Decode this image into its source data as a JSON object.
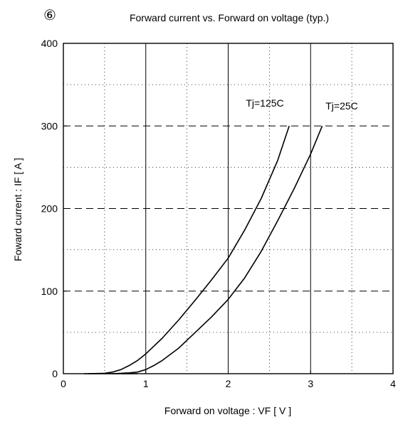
{
  "figure_mark": "⑥",
  "chart_data": {
    "type": "line",
    "title": "Forward current  vs.  Forward on voltage (typ.)",
    "xlabel": "Forward on voltage :  VF  [ V ]",
    "ylabel": "Foward current :  IF [ A ]",
    "xlim": [
      0,
      4
    ],
    "ylim": [
      0,
      400
    ],
    "xticks": [
      0,
      1,
      2,
      3,
      4
    ],
    "yticks": [
      0,
      100,
      200,
      300,
      400
    ],
    "xtick_labels": [
      "0",
      "1",
      "2",
      "3",
      "4"
    ],
    "ytick_labels": [
      "0",
      "100",
      "200",
      "300",
      "400"
    ],
    "grid": true,
    "series": [
      {
        "name": "Tj=125C",
        "x": [
          0.3,
          0.5,
          0.6,
          0.7,
          0.8,
          0.9,
          1.0,
          1.2,
          1.4,
          1.6,
          1.8,
          2.0,
          2.2,
          2.4,
          2.6,
          2.74
        ],
        "y": [
          0,
          0.5,
          2,
          5,
          10,
          16,
          24,
          43,
          65,
          89,
          114,
          140,
          174,
          212,
          258,
          300
        ]
      },
      {
        "name": "Tj=25C",
        "x": [
          0.6,
          0.8,
          0.9,
          1.0,
          1.1,
          1.2,
          1.4,
          1.6,
          1.8,
          2.0,
          2.2,
          2.4,
          2.6,
          2.8,
          3.0,
          3.14
        ],
        "y": [
          0,
          1,
          2,
          5,
          10,
          16,
          31,
          50,
          69,
          90,
          116,
          148,
          185,
          224,
          266,
          300
        ]
      }
    ]
  }
}
